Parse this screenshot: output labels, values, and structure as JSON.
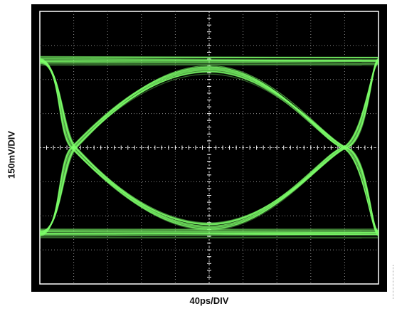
{
  "chart_data": {
    "type": "line",
    "subtype": "eye-diagram",
    "title": "",
    "xlabel": "40ps/DIV",
    "ylabel": "150mV/DIV",
    "x_divisions": 10,
    "y_divisions": 8,
    "xlim_ps": [
      0,
      400
    ],
    "ylim_mV": [
      -600,
      600
    ],
    "grid": true,
    "background": "#000000",
    "frame_color": "#000000",
    "grid_color": "#8a8a8a",
    "trace_color": "#7dff6a",
    "series": [
      {
        "level": "high",
        "x_ps": [
          0,
          400
        ],
        "y_mV": [
          380,
          380
        ]
      },
      {
        "level": "low",
        "x_ps": [
          0,
          400
        ],
        "y_mV": [
          -380,
          -380
        ]
      },
      {
        "transition": "rising",
        "x_ps": [
          0,
          80,
          160,
          240,
          320,
          400
        ],
        "y_mV": [
          -380,
          0,
          360,
          360,
          0,
          -380
        ]
      },
      {
        "transition": "falling",
        "x_ps": [
          0,
          80,
          160,
          240,
          320,
          400
        ],
        "y_mV": [
          380,
          0,
          -360,
          -360,
          0,
          380
        ]
      }
    ],
    "eye_crossings_ps": [
      40,
      360
    ],
    "eye_opening_center_mV": [
      -345,
      345
    ]
  }
}
